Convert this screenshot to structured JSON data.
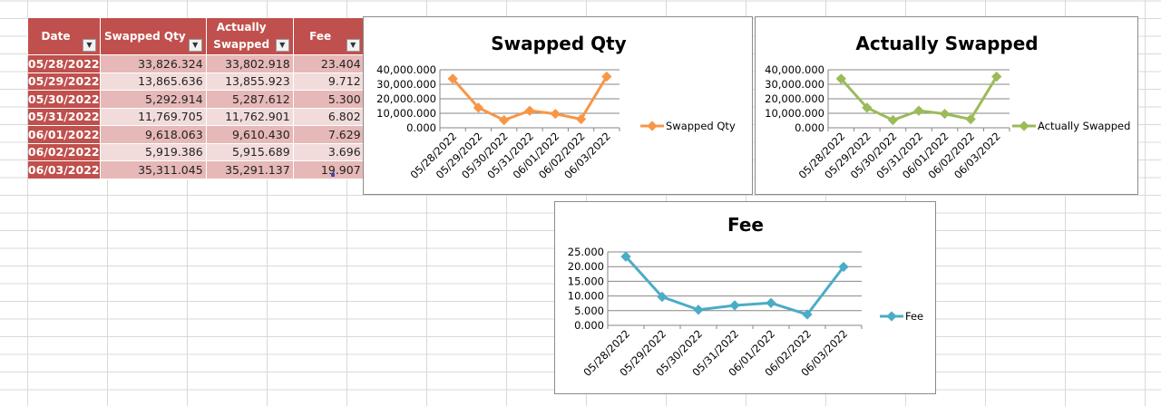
{
  "table": {
    "headers": [
      {
        "line1": "Date",
        "line2": ""
      },
      {
        "line1": "Swapped Qty",
        "line2": ""
      },
      {
        "line1": "Actually",
        "line2": "Swapped"
      },
      {
        "line1": "Fee",
        "line2": ""
      }
    ],
    "filter_icon": "dropdown-arrow-icon",
    "rows": [
      {
        "date": "05/28/2022",
        "swapped_qty": "33,826.324",
        "actually_swapped": "33,802.918",
        "fee": "23.404"
      },
      {
        "date": "05/29/2022",
        "swapped_qty": "13,865.636",
        "actually_swapped": "13,855.923",
        "fee": "9.712"
      },
      {
        "date": "05/30/2022",
        "swapped_qty": "5,292.914",
        "actually_swapped": "5,287.612",
        "fee": "5.300"
      },
      {
        "date": "05/31/2022",
        "swapped_qty": "11,769.705",
        "actually_swapped": "11,762.901",
        "fee": "6.802"
      },
      {
        "date": "06/01/2022",
        "swapped_qty": "9,618.063",
        "actually_swapped": "9,610.430",
        "fee": "7.629"
      },
      {
        "date": "06/02/2022",
        "swapped_qty": "5,919.386",
        "actually_swapped": "5,915.689",
        "fee": "3.696"
      },
      {
        "date": "06/03/2022",
        "swapped_qty": "35,311.045",
        "actually_swapped": "35,291.137",
        "fee": "19.907"
      }
    ],
    "colors": {
      "header": "#c0504d",
      "band_dark": "#e6b8b7",
      "band_light": "#f2dcdb"
    }
  },
  "chart_data": [
    {
      "type": "line",
      "title": "Swapped Qty",
      "x": [
        "05/28/2022",
        "05/29/2022",
        "05/30/2022",
        "05/31/2022",
        "06/01/2022",
        "06/02/2022",
        "06/03/2022"
      ],
      "series": [
        {
          "name": "Swapped Qty",
          "values": [
            33826.324,
            13865.636,
            5292.914,
            11769.705,
            9618.063,
            5919.386,
            35311.045
          ],
          "color": "#f79646"
        }
      ],
      "y_ticks": [
        "0.000",
        "10,000.000",
        "20,000.000",
        "30,000.000",
        "40,000.000"
      ],
      "ylim": [
        0,
        40000
      ],
      "xlabel": "",
      "ylabel": "",
      "grid": true,
      "legend": "right"
    },
    {
      "type": "line",
      "title": "Actually Swapped",
      "x": [
        "05/28/2022",
        "05/29/2022",
        "05/30/2022",
        "05/31/2022",
        "06/01/2022",
        "06/02/2022",
        "06/03/2022"
      ],
      "series": [
        {
          "name": "Actually Swapped",
          "values": [
            33802.918,
            13855.923,
            5287.612,
            11762.901,
            9610.43,
            5915.689,
            35291.137
          ],
          "color": "#9bbb59"
        }
      ],
      "y_ticks": [
        "0.000",
        "10,000.000",
        "20,000.000",
        "30,000.000",
        "40,000.000"
      ],
      "ylim": [
        0,
        40000
      ],
      "xlabel": "",
      "ylabel": "",
      "grid": true,
      "legend": "right"
    },
    {
      "type": "line",
      "title": "Fee",
      "x": [
        "05/28/2022",
        "05/29/2022",
        "05/30/2022",
        "05/31/2022",
        "06/01/2022",
        "06/02/2022",
        "06/03/2022"
      ],
      "series": [
        {
          "name": "Fee",
          "values": [
            23.404,
            9.712,
            5.3,
            6.802,
            7.629,
            3.696,
            19.907
          ],
          "color": "#4bacc6"
        }
      ],
      "y_ticks": [
        "0.000",
        "5.000",
        "10.000",
        "15.000",
        "20.000",
        "25.000"
      ],
      "ylim": [
        0,
        25
      ],
      "xlabel": "",
      "ylabel": "",
      "grid": true,
      "legend": "right"
    }
  ]
}
